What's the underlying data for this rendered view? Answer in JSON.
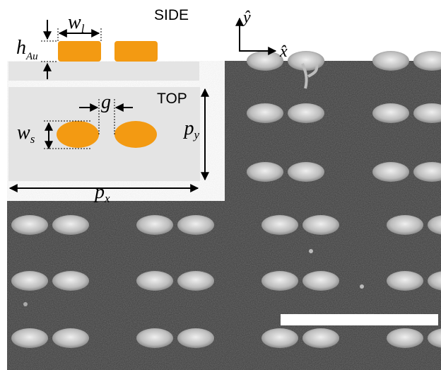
{
  "labels": {
    "side": "SIDE",
    "top": "TOP",
    "w_l_main": "w",
    "w_l_sub": "l",
    "h_main": "h",
    "h_sub": "Au",
    "g": "g",
    "w_s_main": "w",
    "w_s_sub": "s",
    "p_y_main": "p",
    "p_y_sub": "y",
    "p_x_main": "p",
    "p_x_sub": "x",
    "axis_y": "ŷ",
    "axis_x": "x̂"
  },
  "colors": {
    "gold": "#f39a12",
    "panel": "#e4e4e4",
    "sem_bg": "#3a3a3a",
    "dot": "#d0d0d0",
    "scale_bar": "#ffffff"
  }
}
